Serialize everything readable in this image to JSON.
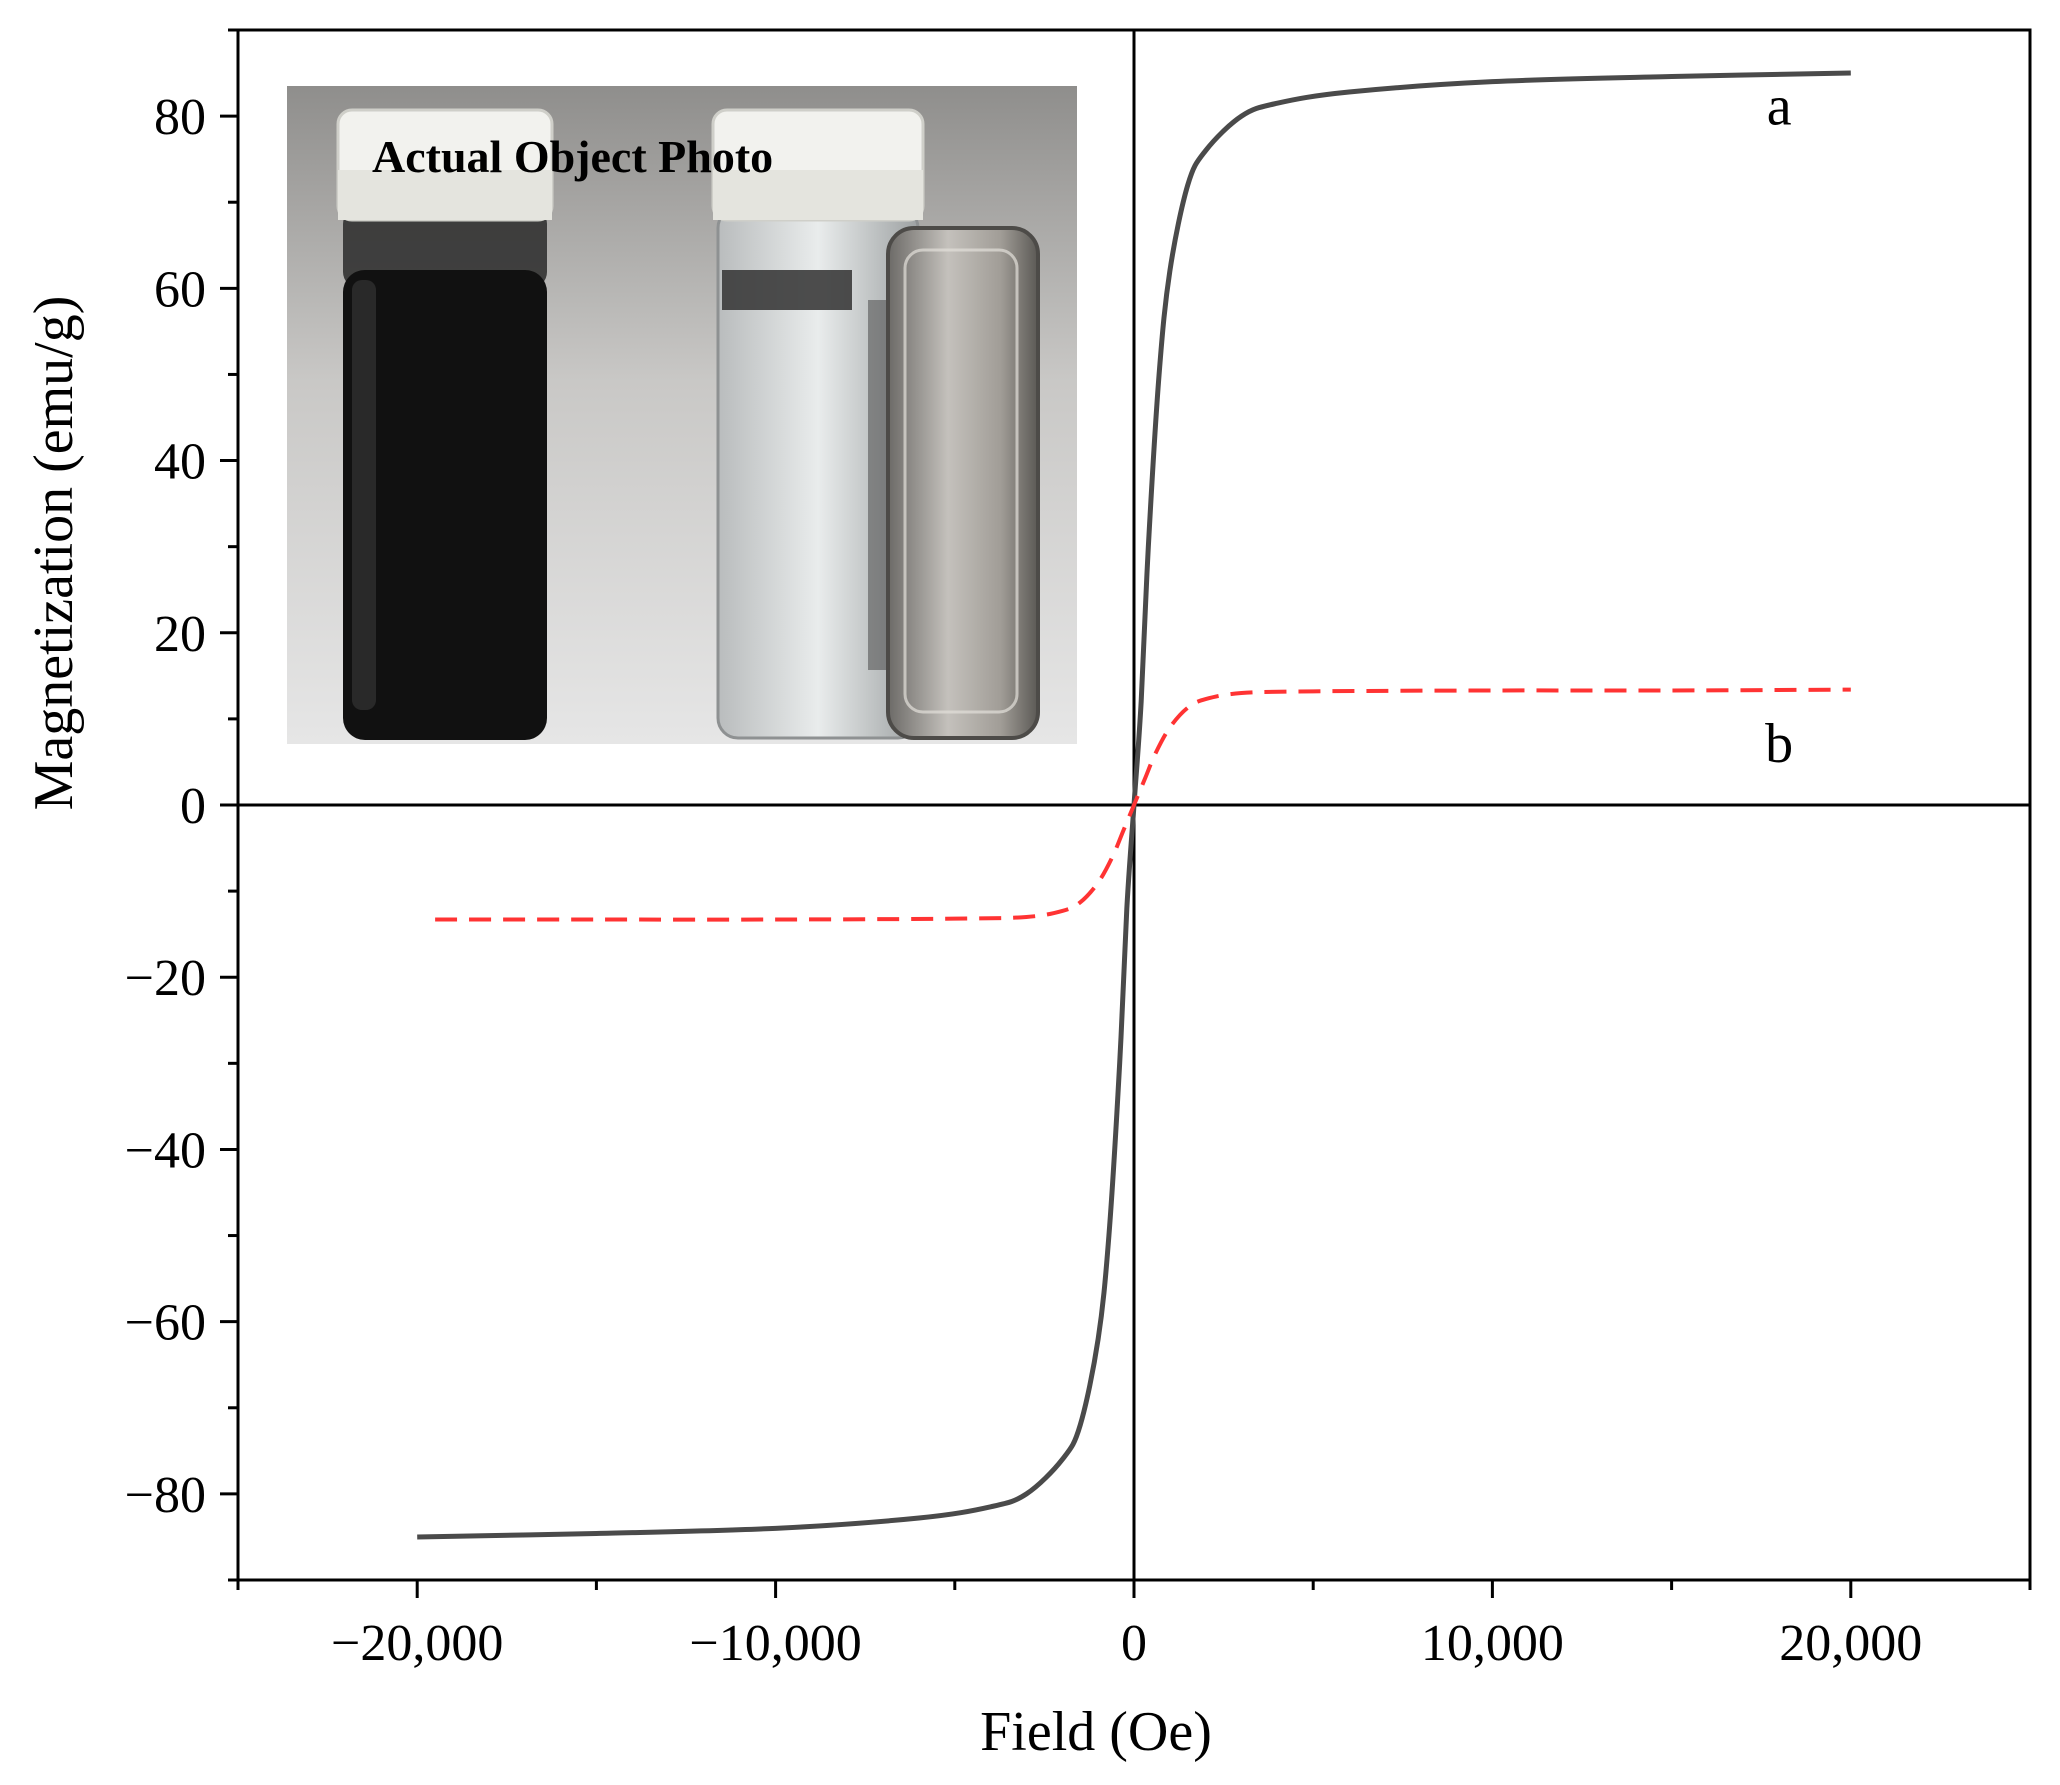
{
  "chart_data": {
    "type": "line",
    "xlabel": "Field (Oe)",
    "ylabel": "Magnetization (emu/g)",
    "xlim": [
      -25000,
      25000
    ],
    "ylim": [
      -90,
      90
    ],
    "x_ticks": [
      -20000,
      -10000,
      0,
      10000,
      20000
    ],
    "x_tick_labels": [
      "−20,000",
      "−10,000",
      "0",
      "10,000",
      "20,000"
    ],
    "y_ticks": [
      -80,
      -60,
      -40,
      -20,
      0,
      20,
      40,
      60,
      80
    ],
    "y_tick_labels": [
      "−80",
      "−60",
      "−40",
      "−20",
      "0",
      "20",
      "40",
      "60",
      "80"
    ],
    "grid": false,
    "zero_lines": true,
    "series": [
      {
        "name": "a",
        "color": "#4a4a4a",
        "style": "solid",
        "x": [
          -20000,
          -15000,
          -10000,
          -6000,
          -4000,
          -3000,
          -2000,
          -1500,
          -1000,
          -700,
          -400,
          -200,
          0,
          200,
          400,
          700,
          1000,
          1500,
          2000,
          3000,
          4000,
          6000,
          10000,
          15000,
          20000
        ],
        "y": [
          -85,
          -84.6,
          -84,
          -82.8,
          -81.5,
          -80,
          -76,
          -72,
          -62,
          -50,
          -30,
          -12,
          0,
          12,
          30,
          50,
          62,
          72,
          76,
          80,
          81.5,
          82.8,
          84,
          84.6,
          85
        ]
      },
      {
        "name": "b",
        "color": "#ff3333",
        "style": "dashed",
        "x": [
          -19500,
          -15000,
          -10000,
          -5000,
          -3000,
          -2000,
          -1500,
          -1000,
          -600,
          -300,
          0,
          300,
          600,
          1000,
          1500,
          2000,
          3000,
          5000,
          10000,
          15000,
          20000
        ],
        "y": [
          -13.3,
          -13.3,
          -13.3,
          -13.2,
          -13,
          -12.3,
          -11.3,
          -9,
          -6,
          -3,
          0,
          3,
          6,
          9,
          11.3,
          12.3,
          13,
          13.2,
          13.3,
          13.3,
          13.4
        ]
      }
    ],
    "annotations": [
      {
        "text": "a",
        "x": 18000,
        "y": 79
      },
      {
        "text": "b",
        "x": 18000,
        "y": 5
      }
    ],
    "inset": {
      "caption": "Actual Object Photo",
      "caption_color": "#ff1a1a"
    }
  }
}
